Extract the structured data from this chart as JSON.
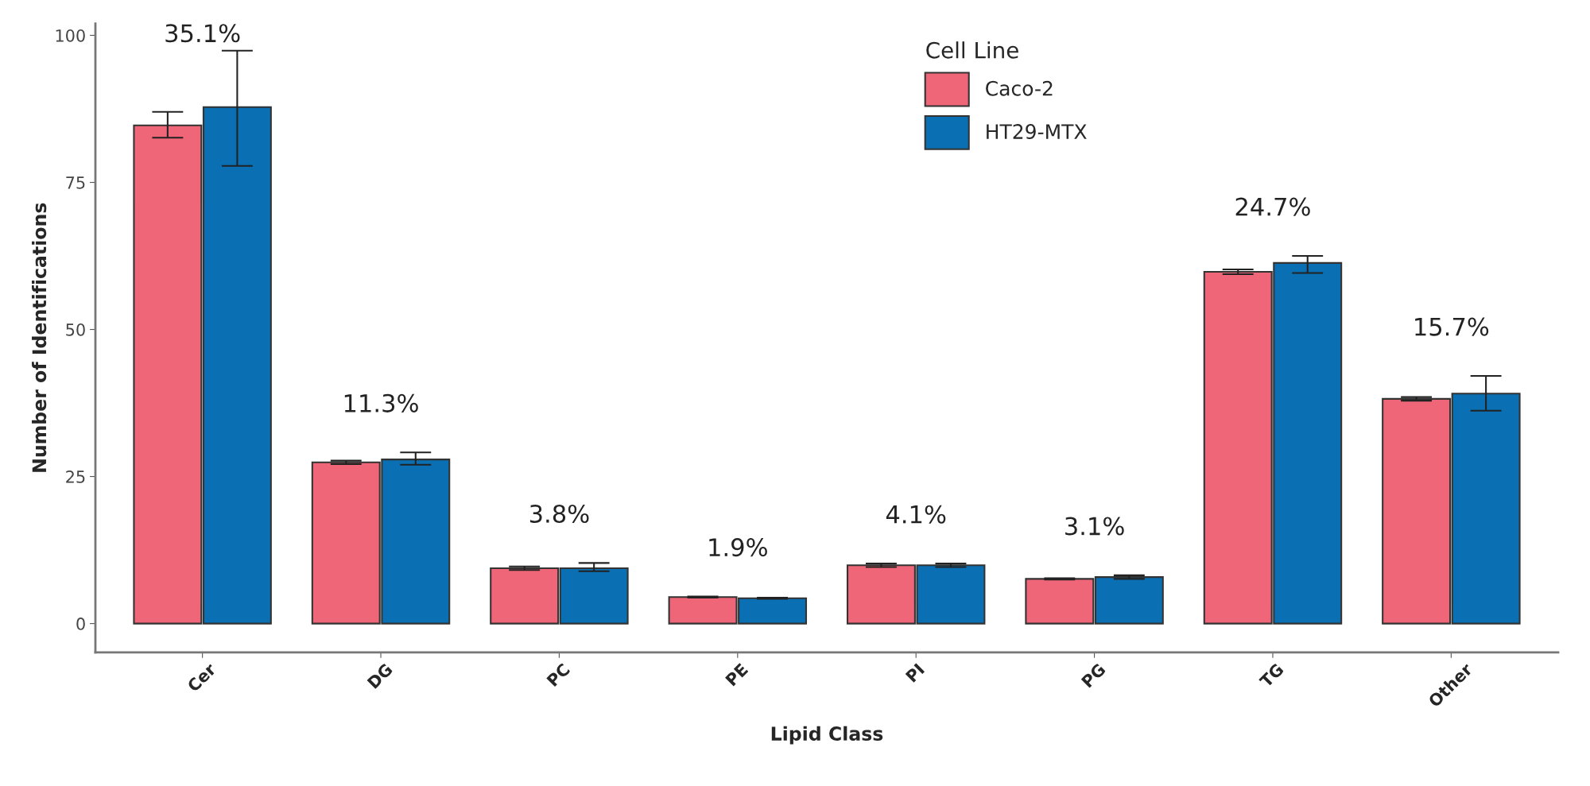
{
  "chart_data": {
    "type": "bar",
    "xlabel": "Lipid Class",
    "ylabel": "Number of Identifications",
    "legend_title": "Cell Line",
    "categories": [
      "Cer",
      "DG",
      "PC",
      "PE",
      "PI",
      "PG",
      "TG",
      "Other"
    ],
    "series": [
      {
        "name": "Caco-2",
        "color": "#ee6677",
        "values": [
          84.7,
          27.4,
          9.4,
          4.5,
          9.9,
          7.6,
          59.8,
          38.2
        ],
        "errors": [
          [
            82.6,
            87.0
          ],
          [
            27.1,
            27.7
          ],
          [
            9.1,
            9.7
          ],
          [
            4.4,
            4.6
          ],
          [
            9.6,
            10.2
          ],
          [
            7.5,
            7.7
          ],
          [
            59.4,
            60.2
          ],
          [
            37.9,
            38.5
          ]
        ]
      },
      {
        "name": "HT29-MTX",
        "color": "#0b6fb3",
        "values": [
          87.8,
          27.9,
          9.4,
          4.3,
          9.9,
          7.9,
          61.3,
          39.1
        ],
        "errors": [
          [
            77.8,
            97.4
          ],
          [
            27.0,
            29.1
          ],
          [
            8.9,
            10.3
          ],
          [
            4.2,
            4.4
          ],
          [
            9.6,
            10.2
          ],
          [
            7.6,
            8.2
          ],
          [
            59.6,
            62.5
          ],
          [
            36.2,
            42.1
          ]
        ]
      }
    ],
    "ylim": [
      -4.9,
      102
    ],
    "yticks": [
      0,
      25,
      50,
      75,
      100
    ],
    "grid": false,
    "legend": "top",
    "annotations": [
      "35.1%",
      "11.3%",
      "3.8%",
      "1.9%",
      "4.1%",
      "3.1%",
      "24.7%",
      "15.7%"
    ]
  }
}
